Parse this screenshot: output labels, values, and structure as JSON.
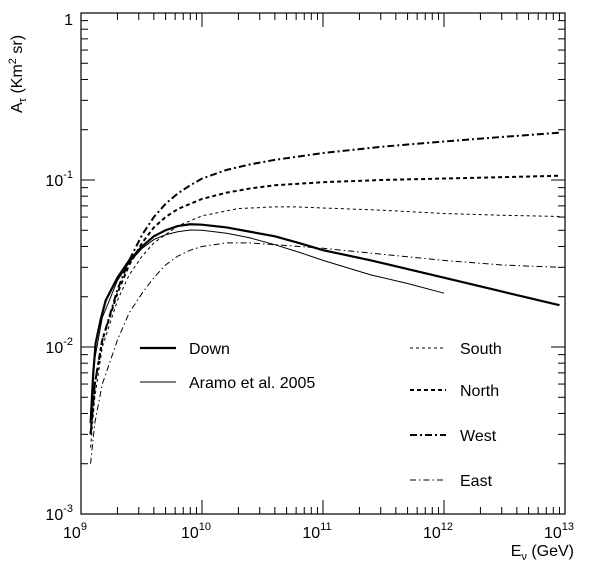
{
  "chart_data": {
    "type": "line",
    "xscale": "log",
    "yscale": "log",
    "xlim": [
      1000000000.0,
      10000000000000.0
    ],
    "ylim": [
      0.001,
      1
    ],
    "xlabel": "E_ν (GeV)",
    "ylabel": "A_τ (Km² sr)",
    "xticks": [
      {
        "value": 1000000000.0,
        "base": "10",
        "exp": "9"
      },
      {
        "value": 10000000000.0,
        "base": "10",
        "exp": "10"
      },
      {
        "value": 100000000000.0,
        "base": "10",
        "exp": "11"
      },
      {
        "value": 1000000000000.0,
        "base": "10",
        "exp": "12"
      },
      {
        "value": 10000000000000.0,
        "base": "10",
        "exp": "13"
      }
    ],
    "yticks": [
      {
        "value": 0.001,
        "base": "10",
        "exp": "-3"
      },
      {
        "value": 0.01,
        "base": "10",
        "exp": "-2"
      },
      {
        "value": 0.1,
        "base": "10",
        "exp": "-1"
      },
      {
        "value": 1,
        "base": "1",
        "exp": ""
      }
    ],
    "grid": false,
    "legend_position": "inside",
    "series": [
      {
        "name": "Down",
        "style": "solid-thick",
        "x": [
          1200000000.0,
          1260000000.0,
          1320000000.0,
          1450000000.0,
          1600000000.0,
          2000000000.0,
          2500000000.0,
          3200000000.0,
          4000000000.0,
          5000000000.0,
          6300000000.0,
          8000000000.0,
          10000000000.0,
          16000000000.0,
          25000000000.0,
          40000000000.0,
          63000000000.0,
          100000000000.0,
          250000000000.0,
          1000000000000.0,
          3000000000000.0,
          9000000000000.0
        ],
        "y": [
          0.0035,
          0.0068,
          0.0105,
          0.0145,
          0.019,
          0.026,
          0.033,
          0.04,
          0.046,
          0.05,
          0.053,
          0.0543,
          0.054,
          0.052,
          0.049,
          0.046,
          0.042,
          0.038,
          0.033,
          0.026,
          0.0215,
          0.0178
        ]
      },
      {
        "name": "Aramo et al. 2005",
        "style": "solid-thin",
        "x": [
          1200000000.0,
          1300000000.0,
          1500000000.0,
          2000000000.0,
          2500000000.0,
          3200000000.0,
          4000000000.0,
          5000000000.0,
          6300000000.0,
          8000000000.0,
          10000000000.0,
          16000000000.0,
          25000000000.0,
          40000000000.0,
          63000000000.0,
          100000000000.0,
          250000000000.0,
          500000000000.0,
          1000000000000.0
        ],
        "y": [
          0.004,
          0.0085,
          0.015,
          0.025,
          0.032,
          0.039,
          0.044,
          0.047,
          0.049,
          0.0502,
          0.05,
          0.048,
          0.045,
          0.041,
          0.037,
          0.033,
          0.027,
          0.024,
          0.021
        ]
      },
      {
        "name": "South",
        "style": "dashed-thin",
        "x": [
          1200000000.0,
          1300000000.0,
          1500000000.0,
          2000000000.0,
          2500000000.0,
          3200000000.0,
          4000000000.0,
          6300000000.0,
          10000000000.0,
          20000000000.0,
          40000000000.0,
          60000000000.0,
          100000000000.0,
          300000000000.0,
          1000000000000.0,
          3000000000000.0,
          9000000000000.0
        ],
        "y": [
          0.0025,
          0.005,
          0.01,
          0.019,
          0.027,
          0.035,
          0.042,
          0.053,
          0.061,
          0.0675,
          0.069,
          0.069,
          0.068,
          0.066,
          0.063,
          0.0615,
          0.0605
        ]
      },
      {
        "name": "North",
        "style": "dashed-thick",
        "x": [
          1200000000.0,
          1300000000.0,
          1500000000.0,
          2000000000.0,
          2500000000.0,
          3200000000.0,
          4000000000.0,
          5000000000.0,
          6300000000.0,
          10000000000.0,
          16000000000.0,
          25000000000.0,
          40000000000.0,
          100000000000.0,
          300000000000.0,
          1000000000000.0,
          3000000000000.0,
          9000000000000.0
        ],
        "y": [
          0.003,
          0.006,
          0.011,
          0.021,
          0.031,
          0.042,
          0.052,
          0.06,
          0.067,
          0.077,
          0.084,
          0.089,
          0.093,
          0.097,
          0.1,
          0.102,
          0.104,
          0.106
        ]
      },
      {
        "name": "West",
        "style": "dashdot-thick",
        "x": [
          1200000000.0,
          1300000000.0,
          1500000000.0,
          2000000000.0,
          2500000000.0,
          3200000000.0,
          4000000000.0,
          5000000000.0,
          6300000000.0,
          8000000000.0,
          10000000000.0,
          16000000000.0,
          25000000000.0,
          40000000000.0,
          100000000000.0,
          300000000000.0,
          1000000000000.0,
          3000000000000.0,
          9000000000000.0
        ],
        "y": [
          0.003,
          0.006,
          0.011,
          0.022,
          0.033,
          0.047,
          0.06,
          0.072,
          0.083,
          0.093,
          0.102,
          0.115,
          0.124,
          0.132,
          0.145,
          0.158,
          0.17,
          0.181,
          0.192
        ]
      },
      {
        "name": "East",
        "style": "dashdot-thin",
        "x": [
          1200000000.0,
          1300000000.0,
          1500000000.0,
          2000000000.0,
          2500000000.0,
          3200000000.0,
          4000000000.0,
          5000000000.0,
          6300000000.0,
          8000000000.0,
          10000000000.0,
          16000000000.0,
          25000000000.0,
          40000000000.0,
          100000000000.0,
          300000000000.0,
          1000000000000.0,
          3000000000000.0,
          9000000000000.0
        ],
        "y": [
          0.002,
          0.0035,
          0.006,
          0.011,
          0.016,
          0.021,
          0.026,
          0.031,
          0.035,
          0.038,
          0.04,
          0.042,
          0.042,
          0.041,
          0.039,
          0.036,
          0.033,
          0.031,
          0.03
        ]
      }
    ]
  }
}
